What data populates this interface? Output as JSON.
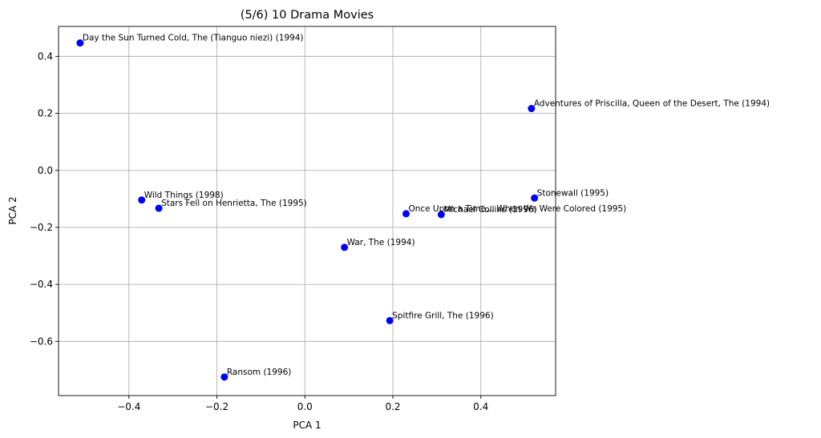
{
  "chart_data": {
    "type": "scatter",
    "title": "(5/6) 10 Drama Movies",
    "xlabel": "PCA 1",
    "ylabel": "PCA 2",
    "xlim": [
      -0.56,
      0.57
    ],
    "ylim": [
      -0.79,
      0.505
    ],
    "xticks": [
      -0.4,
      -0.2,
      0.0,
      0.2,
      0.4
    ],
    "xtick_labels": [
      "−0.4",
      "−0.2",
      "0.0",
      "0.2",
      "0.4"
    ],
    "yticks": [
      -0.6,
      -0.4,
      -0.2,
      0.0,
      0.2,
      0.4
    ],
    "ytick_labels": [
      "−0.6",
      "−0.4",
      "−0.2",
      "0.0",
      "0.2",
      "0.4"
    ],
    "grid": true,
    "marker_color": "#0000ff",
    "points": [
      {
        "label": "Day the Sun Turned Cold, The (Tianguo niezi) (1994)",
        "x": -0.511,
        "y": 0.447
      },
      {
        "label": "Adventures of Priscilla, Queen of the Desert, The (1994)",
        "x": 0.515,
        "y": 0.217
      },
      {
        "label": "Stonewall (1995)",
        "x": 0.522,
        "y": -0.097
      },
      {
        "label": "Wild Things (1998)",
        "x": -0.371,
        "y": -0.104
      },
      {
        "label": "Stars Fell on Henrietta, The (1995)",
        "x": -0.332,
        "y": -0.133
      },
      {
        "label": "Once Upon a Time... When We Were Colored (1995)",
        "x": 0.23,
        "y": -0.152
      },
      {
        "label": "Michael Collins (1996)",
        "x": 0.31,
        "y": -0.155
      },
      {
        "label": "War, The (1994)",
        "x": 0.09,
        "y": -0.27
      },
      {
        "label": "Spitfire Grill, The (1996)",
        "x": 0.193,
        "y": -0.527
      },
      {
        "label": "Ransom (1996)",
        "x": -0.183,
        "y": -0.725
      }
    ]
  }
}
